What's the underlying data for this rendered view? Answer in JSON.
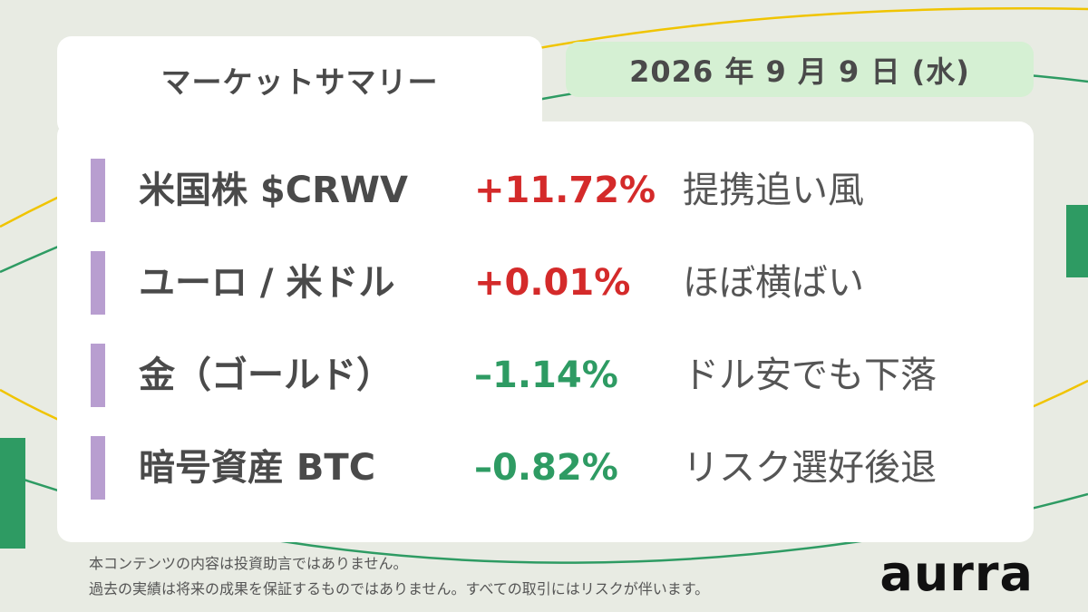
{
  "header": {
    "title": "マーケットサマリー",
    "date": "2026 年 9 月 9 日 (水)"
  },
  "rows": [
    {
      "name": "米国株 $CRWV",
      "change": "+11.72%",
      "comment": "提携追い風",
      "direction": "up"
    },
    {
      "name": "ユーロ / 米ドル",
      "change": "+0.01%",
      "comment": "ほぼ横ばい",
      "direction": "up"
    },
    {
      "name": "金（ゴールド）",
      "change": "–1.14%",
      "comment": "ドル安でも下落",
      "direction": "down"
    },
    {
      "name": "暗号資産 BTC",
      "change": "–0.82%",
      "comment": "リスク選好後退",
      "direction": "down"
    }
  ],
  "footer": {
    "disclaimer_line1": "本コンテンツの内容は投資助言ではありません。",
    "disclaimer_line2": "過去の実績は将来の成果を保証するものではありません。すべての取引にはリスクが伴います。",
    "logo_text": "aurra"
  },
  "colors": {
    "up": "#d42a2a",
    "down": "#2e9b63",
    "accent_bar": "#b89ed0",
    "date_pill": "#d5f0d3",
    "background": "#e8ebe3"
  }
}
